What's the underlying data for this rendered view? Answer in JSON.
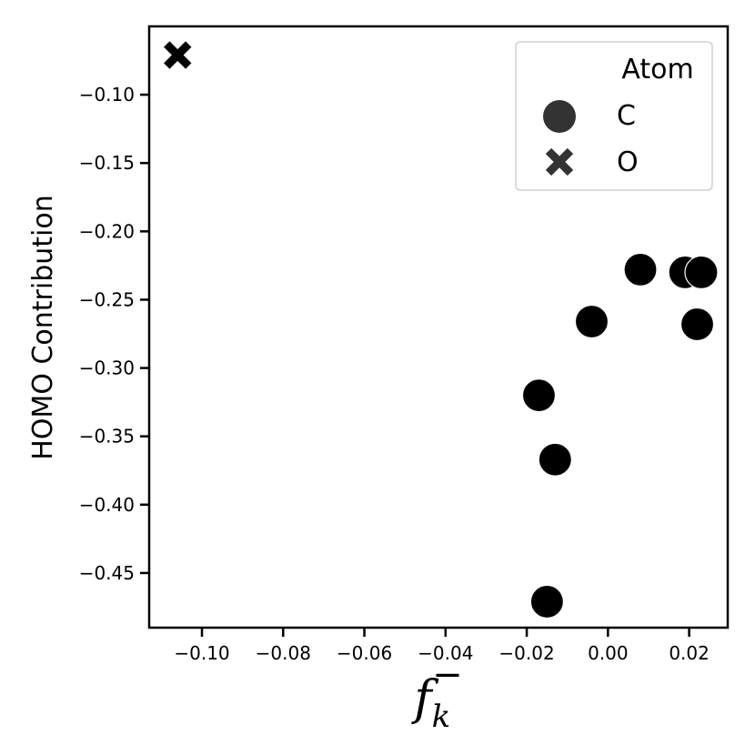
{
  "chart_data": {
    "type": "scatter",
    "title": "",
    "xlabel": "f_k^-",
    "ylabel": "HOMO Contribution",
    "xlim": [
      -0.113,
      0.0295
    ],
    "ylim": [
      -0.49,
      -0.05
    ],
    "x_ticks": [
      -0.1,
      -0.08,
      -0.06,
      -0.04,
      -0.02,
      0.0,
      0.02
    ],
    "x_tick_labels": [
      "−0.10",
      "−0.08",
      "−0.06",
      "−0.04",
      "−0.02",
      "0.00",
      "0.02"
    ],
    "y_ticks": [
      -0.1,
      -0.15,
      -0.2,
      -0.25,
      -0.3,
      -0.35,
      -0.4,
      -0.45
    ],
    "y_tick_labels": [
      "−0.10",
      "−0.15",
      "−0.20",
      "−0.25",
      "−0.30",
      "−0.35",
      "−0.40",
      "−0.45"
    ],
    "grid": false,
    "legend": {
      "title": "Atom",
      "placement": "top-right",
      "entries": [
        {
          "label": "C",
          "marker": "circle"
        },
        {
          "label": "O",
          "marker": "x"
        }
      ]
    },
    "series": [
      {
        "name": "C",
        "marker": "circle",
        "color": "#000000",
        "points": [
          {
            "x": 0.008,
            "y": -0.228
          },
          {
            "x": 0.019,
            "y": -0.23
          },
          {
            "x": 0.023,
            "y": -0.23
          },
          {
            "x": 0.022,
            "y": -0.268
          },
          {
            "x": -0.004,
            "y": -0.266
          },
          {
            "x": -0.017,
            "y": -0.32
          },
          {
            "x": -0.013,
            "y": -0.367
          },
          {
            "x": -0.015,
            "y": -0.471
          }
        ]
      },
      {
        "name": "O",
        "marker": "x",
        "color": "#000000",
        "points": [
          {
            "x": -0.106,
            "y": -0.071
          }
        ]
      }
    ],
    "legend_marker_color": "#333333"
  }
}
